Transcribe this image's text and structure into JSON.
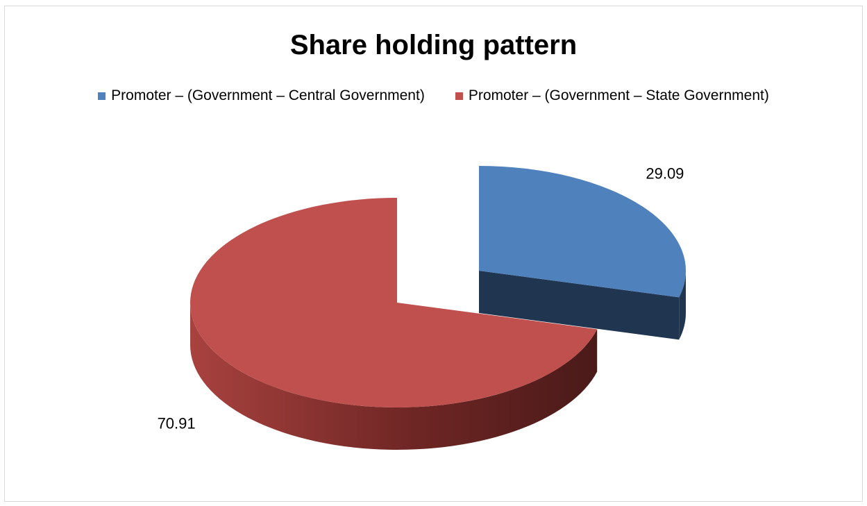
{
  "chart_data": {
    "type": "pie",
    "title": "Share holding pattern",
    "legend_position": "top",
    "series": [
      {
        "name": "",
        "slices": [
          {
            "label": "Promoter – (Government – Central Government)",
            "value": 29.09,
            "value_label": "29.09",
            "color": "#4f81bd",
            "side_color": "#1f3550",
            "exploded": true
          },
          {
            "label": "Promoter – (Government – State Government)",
            "value": 70.91,
            "value_label": "70.91",
            "color": "#c0504d",
            "side_color": "#7a2a27",
            "exploded": false
          }
        ]
      }
    ],
    "style": "3d-exploded-pie"
  }
}
